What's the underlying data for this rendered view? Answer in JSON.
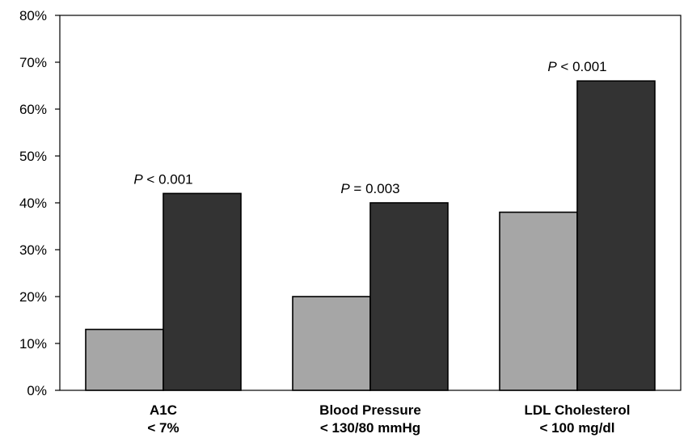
{
  "chart_data": {
    "type": "bar",
    "title": "",
    "xlabel": "",
    "ylabel": "",
    "ylim": [
      0,
      80
    ],
    "yticks": [
      "0%",
      "10%",
      "20%",
      "30%",
      "40%",
      "50%",
      "60%",
      "70%",
      "80%"
    ],
    "categories": [
      [
        "A1C",
        "< 7%"
      ],
      [
        "Blood Pressure",
        "< 130/80 mmHg"
      ],
      [
        "LDL Cholesterol",
        "< 100 mg/dl"
      ]
    ],
    "series": [
      {
        "values": [
          13,
          20,
          38
        ],
        "color": "#a6a6a6"
      },
      {
        "values": [
          42,
          40,
          66
        ],
        "color": "#333333"
      }
    ],
    "annotations": [
      {
        "p": "P",
        "rest": " < 0.001"
      },
      {
        "p": "P",
        "rest": " = 0.003"
      },
      {
        "p": "P",
        "rest": " < 0.001"
      }
    ],
    "grid": false,
    "legend": "none"
  }
}
